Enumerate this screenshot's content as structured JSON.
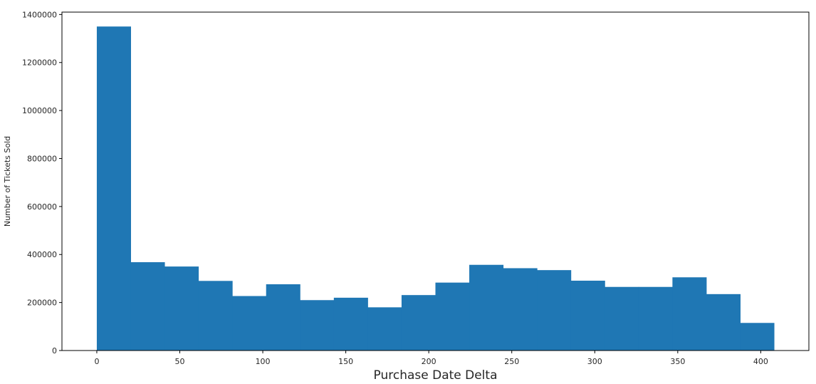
{
  "chart_data": {
    "type": "bar",
    "title": "",
    "xlabel": "Purchase Date Delta",
    "ylabel": "Number of Tickets Sold",
    "xlim": [
      -21,
      429
    ],
    "ylim": [
      0,
      1410000
    ],
    "x_ticks": [
      0,
      50,
      100,
      150,
      200,
      250,
      300,
      350,
      400
    ],
    "y_ticks": [
      0,
      200000,
      400000,
      600000,
      800000,
      1000000,
      1200000,
      1400000
    ],
    "bin_edges": [
      0,
      20.4,
      40.8,
      61.2,
      81.6,
      102,
      122.4,
      142.8,
      163.2,
      183.6,
      204,
      224.4,
      244.8,
      265.2,
      285.6,
      306,
      326.4,
      346.8,
      367.2,
      387.6,
      408
    ],
    "values": [
      1350000,
      368000,
      350000,
      290000,
      227000,
      276000,
      210000,
      220000,
      180000,
      231000,
      283000,
      357000,
      343000,
      335000,
      291000,
      265000,
      265000,
      305000,
      235000,
      115000
    ],
    "bar_color": "#1f77b4",
    "grid": false,
    "legend": "none"
  }
}
